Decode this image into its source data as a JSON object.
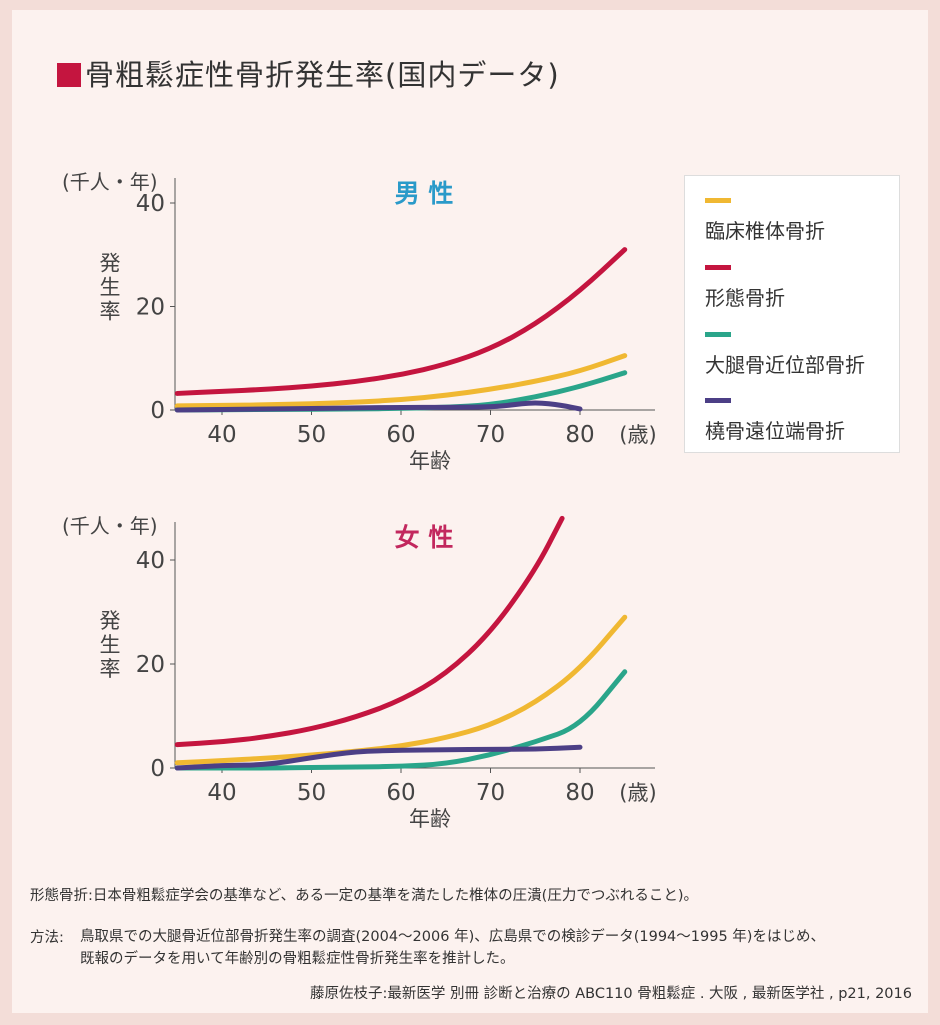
{
  "title": "骨粗鬆症性骨折発生率(国内データ)",
  "colors": {
    "clinical_vertebral": "#f0b832",
    "morphometric": "#c4153f",
    "hip": "#2aa58a",
    "radius": "#4c3f86",
    "male_title": "#2a9ac9",
    "female_title": "#c2285e"
  },
  "legend": [
    {
      "label": "臨床椎体骨折",
      "color": "#f0b832"
    },
    {
      "label": "形態骨折",
      "color": "#c4153f"
    },
    {
      "label": "大腿骨近位部骨折",
      "color": "#2aa58a"
    },
    {
      "label": "橈骨遠位端骨折",
      "color": "#4c3f86"
    }
  ],
  "chart_data": [
    {
      "type": "line",
      "title": "男 性",
      "ylabel": "発生率",
      "yunit": "(千人・年)",
      "xlabel": "年齢",
      "xunit": "(歳)",
      "xlim": [
        35,
        85
      ],
      "ylim": [
        0,
        40
      ],
      "xticks": [
        40,
        50,
        60,
        70,
        80
      ],
      "yticks": [
        0,
        20,
        40
      ],
      "series": [
        {
          "name": "形態骨折",
          "color": "#c4153f",
          "x": [
            35,
            40,
            45,
            50,
            55,
            60,
            65,
            70,
            75,
            80,
            85
          ],
          "y": [
            3.2,
            3.6,
            4.0,
            4.6,
            5.5,
            6.8,
            8.8,
            11.8,
            16.5,
            23.0,
            31.0
          ]
        },
        {
          "name": "臨床椎体骨折",
          "color": "#f0b832",
          "x": [
            35,
            40,
            45,
            50,
            55,
            60,
            65,
            70,
            75,
            80,
            85
          ],
          "y": [
            0.8,
            0.9,
            1.0,
            1.2,
            1.5,
            2.0,
            2.8,
            4.0,
            5.5,
            7.5,
            10.5
          ]
        },
        {
          "name": "大腿骨近位部骨折",
          "color": "#2aa58a",
          "x": [
            35,
            45,
            55,
            60,
            65,
            70,
            75,
            80,
            85
          ],
          "y": [
            0.0,
            0.1,
            0.2,
            0.3,
            0.5,
            1.0,
            2.5,
            4.5,
            7.2
          ]
        },
        {
          "name": "橈骨遠位端骨折",
          "color": "#4c3f86",
          "x": [
            35,
            45,
            55,
            60,
            65,
            70,
            72,
            75,
            78,
            80
          ],
          "y": [
            0.0,
            0.2,
            0.4,
            0.5,
            0.5,
            0.6,
            0.9,
            1.5,
            0.9,
            0.2
          ]
        }
      ]
    },
    {
      "type": "line",
      "title": "女 性",
      "ylabel": "発生率",
      "yunit": "(千人・年)",
      "xlabel": "年齢",
      "xunit": "(歳)",
      "xlim": [
        35,
        85
      ],
      "ylim": [
        0,
        40
      ],
      "xticks": [
        40,
        50,
        60,
        70,
        80
      ],
      "yticks": [
        0,
        20,
        40
      ],
      "series": [
        {
          "name": "形態骨折",
          "color": "#c4153f",
          "x": [
            35,
            40,
            45,
            50,
            55,
            60,
            65,
            70,
            75,
            78
          ],
          "y": [
            4.5,
            5.0,
            6.0,
            7.5,
            9.8,
            13.0,
            18.0,
            26.0,
            38.0,
            48.0
          ]
        },
        {
          "name": "臨床椎体骨折",
          "color": "#f0b832",
          "x": [
            35,
            40,
            45,
            50,
            55,
            60,
            65,
            70,
            75,
            80,
            85
          ],
          "y": [
            1.0,
            1.4,
            1.9,
            2.5,
            3.2,
            4.2,
            5.8,
            8.2,
            12.5,
            19.0,
            29.0
          ]
        },
        {
          "name": "大腿骨近位部骨折",
          "color": "#2aa58a",
          "x": [
            35,
            45,
            50,
            55,
            60,
            65,
            70,
            75,
            80,
            85
          ],
          "y": [
            0.0,
            0.0,
            0.1,
            0.2,
            0.3,
            0.8,
            2.5,
            5.0,
            8.0,
            18.5
          ]
        },
        {
          "name": "橈骨遠位端骨折",
          "color": "#4c3f86",
          "x": [
            35,
            40,
            45,
            50,
            55,
            60,
            65,
            70,
            75,
            80
          ],
          "y": [
            0.0,
            0.5,
            0.6,
            2.0,
            3.2,
            3.4,
            3.5,
            3.6,
            3.6,
            4.0
          ]
        }
      ]
    }
  ],
  "notes": {
    "definition": "形態骨折:日本骨粗鬆症学会の基準など、ある一定の基準を満たした椎体の圧潰(圧力でつぶれること)。",
    "method_label": "方法:",
    "method_line1": "鳥取県での大腿骨近位部骨折発生率の調査(2004〜2006 年)、広島県での検診データ(1994〜1995 年)をはじめ、",
    "method_line2": "既報のデータを用いて年齢別の骨粗鬆症性骨折発生率を推計した。",
    "citation": "藤原佐枝子:最新医学 別冊 診断と治療の ABC110 骨粗鬆症 . 大阪 , 最新医学社 , p21, 2016"
  }
}
